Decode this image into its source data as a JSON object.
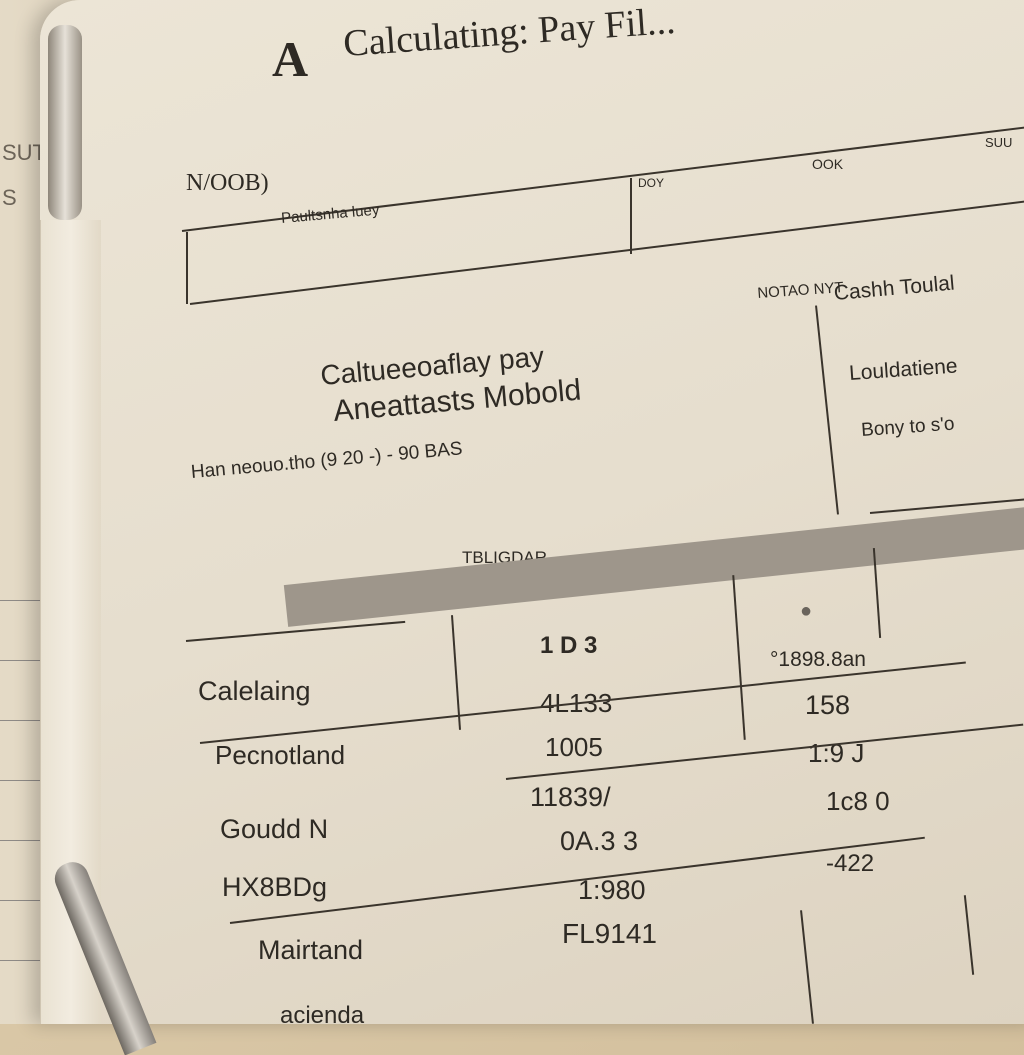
{
  "left_sheet": {
    "margin_text": [
      "SUT",
      "S"
    ]
  },
  "header": {
    "logo": "A",
    "title": "Calculating: Pay Fil..."
  },
  "form": {
    "name_label": "N/OOB)",
    "field_label": "Paultsnha luey",
    "col2_label": "DOY",
    "col3_label": "OOK",
    "col4_label": "SUU"
  },
  "notes_box": {
    "label": "NOTAO NYT",
    "title": "Cashh Toulal",
    "lines": [
      "Louldatiene",
      "Bony to s'o"
    ]
  },
  "method": {
    "line1": "Caltueeoaflay pay",
    "line2": "Aneattasts Mobold",
    "line3": "Han neouo.tho (9 20 -) - 90 BAS"
  },
  "table": {
    "caption": "TBLIGDAR",
    "header_col2": "1 D 3",
    "rows": [
      {
        "label": "Calelaing",
        "col2": "4L133",
        "col3": "°1898.8an"
      },
      {
        "label": "",
        "col2": "",
        "col3": "158"
      },
      {
        "label": "Pecnotland",
        "col2": "1005",
        "col3": "1:9 J"
      },
      {
        "label": "",
        "col2": "11839/",
        "col3": "1c8 0"
      },
      {
        "label": "Goudd N",
        "col2": "0A.3 3",
        "col3": "-422"
      },
      {
        "label": "HX8BDg",
        "col2": "1:980",
        "col3": ""
      },
      {
        "label": "Mairtand",
        "col2": "FL9141",
        "col3": ""
      },
      {
        "label": "acienda",
        "col2": "",
        "col3": ""
      }
    ]
  },
  "colors": {
    "paper": "#e8e1d2",
    "ink": "#2e2a24",
    "header_band": "#9e968b"
  }
}
